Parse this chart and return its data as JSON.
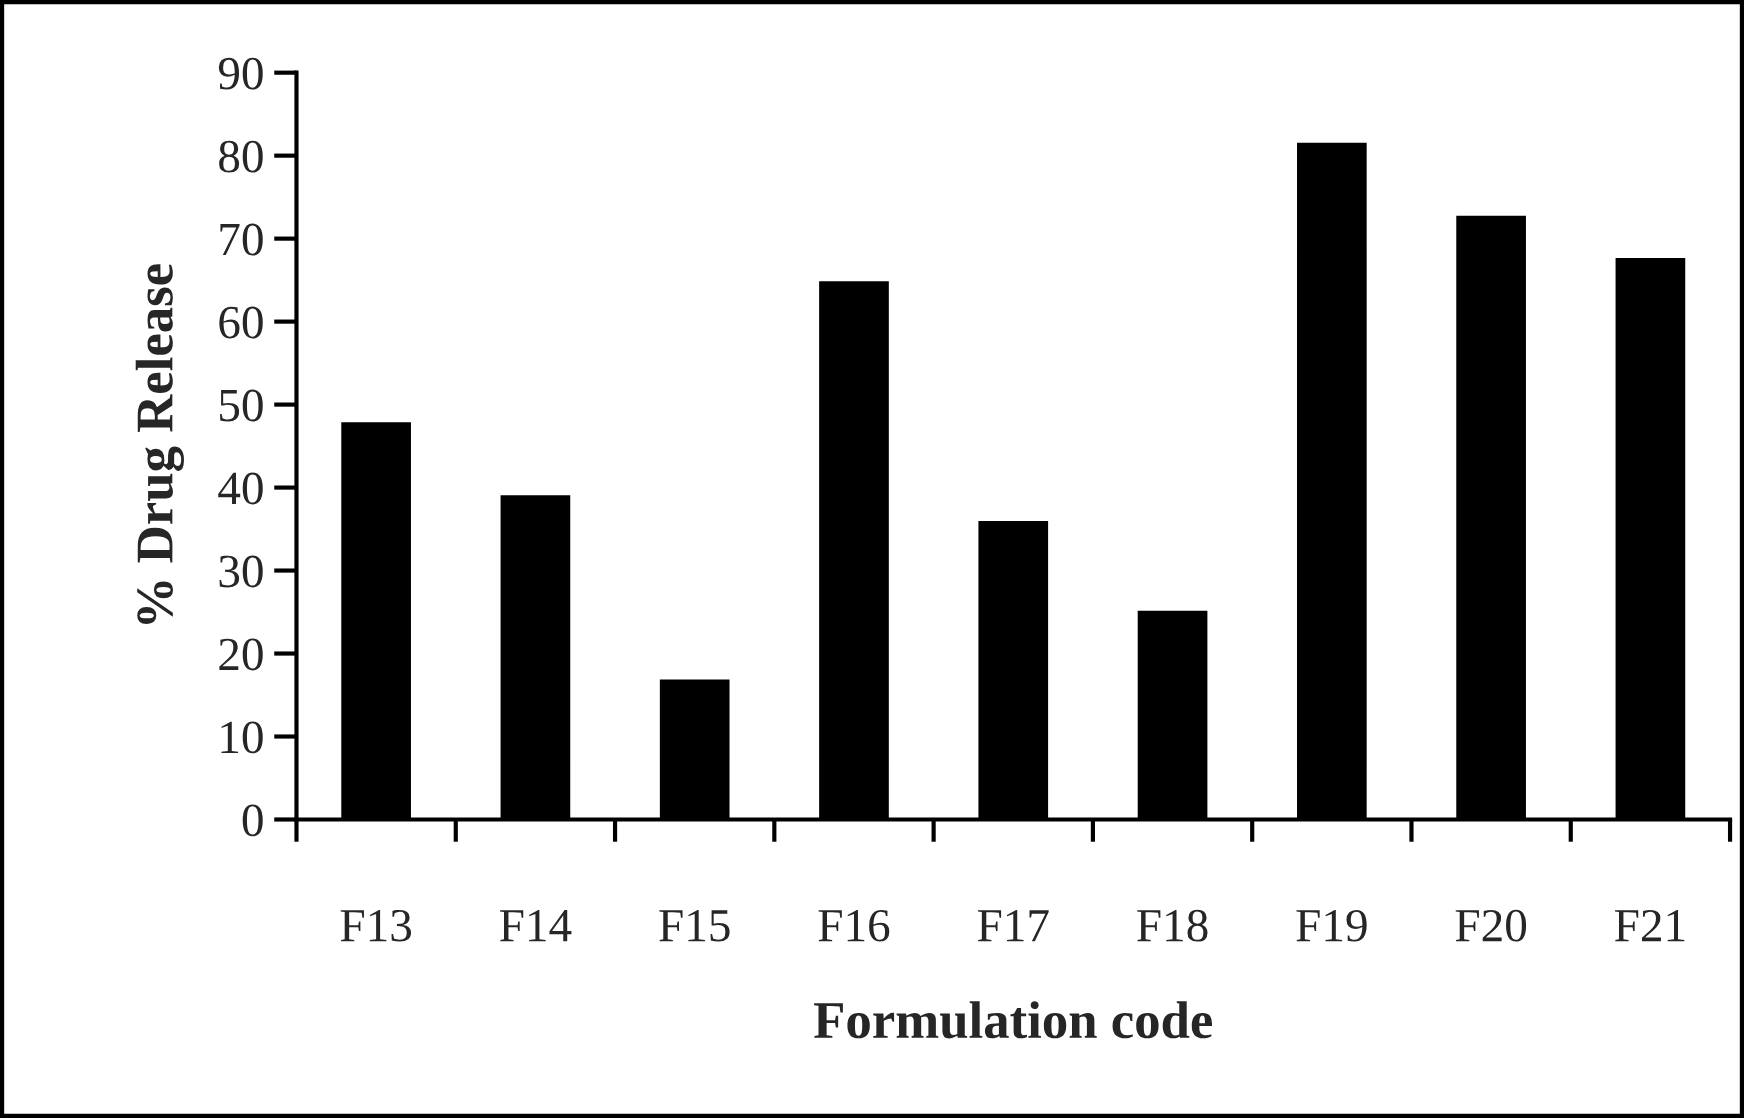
{
  "chart_data": {
    "type": "bar",
    "xlabel": "Formulation code",
    "ylabel": "% Drug Release",
    "categories": [
      "F13",
      "F14",
      "F15",
      "F16",
      "F17",
      "F18",
      "F19",
      "F20",
      "F21"
    ],
    "values": [
      47.7,
      38.9,
      16.7,
      64.7,
      35.8,
      25.0,
      81.4,
      72.6,
      67.5
    ],
    "color": "#000000",
    "ylim": [
      0,
      90
    ],
    "yticks": [
      0,
      10,
      20,
      30,
      40,
      50,
      60,
      70,
      80,
      90
    ],
    "grid": false,
    "legend": false
  }
}
